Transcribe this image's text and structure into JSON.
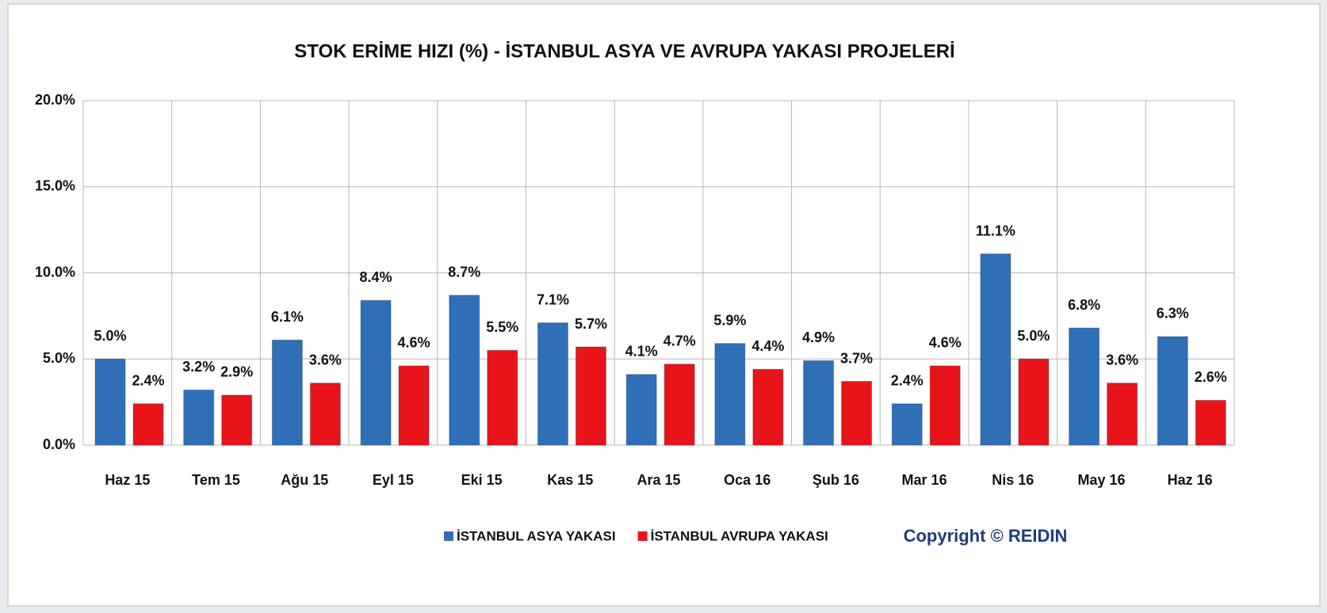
{
  "chart_data": {
    "type": "bar",
    "title": "STOK ERİME HIZI (%) - İSTANBUL ASYA VE AVRUPA YAKASI PROJELERİ",
    "categories": [
      "Haz 15",
      "Tem 15",
      "Ağu 15",
      "Eyl 15",
      "Eki 15",
      "Kas 15",
      "Ara 15",
      "Oca 16",
      "Şub 16",
      "Mar 16",
      "Nis 16",
      "May 16",
      "Haz 16"
    ],
    "series": [
      {
        "name": "İSTANBUL ASYA YAKASI",
        "color": "#2f6fb8",
        "values": [
          5.0,
          3.2,
          6.1,
          8.4,
          8.7,
          7.1,
          4.1,
          5.9,
          4.9,
          2.4,
          11.1,
          6.8,
          6.3
        ],
        "value_labels": [
          "5.0%",
          "3.2%",
          "6.1%",
          "8.4%",
          "8.7%",
          "7.1%",
          "4.1%",
          "5.9%",
          "4.9%",
          "2.4%",
          "11.1%",
          "6.8%",
          "6.3%"
        ]
      },
      {
        "name": "İSTANBUL AVRUPA YAKASI",
        "color": "#e8141a",
        "values": [
          2.4,
          2.9,
          3.6,
          4.6,
          5.5,
          5.7,
          4.7,
          4.4,
          3.7,
          4.6,
          5.0,
          3.6,
          2.6
        ],
        "value_labels": [
          "2.4%",
          "2.9%",
          "3.6%",
          "4.6%",
          "5.5%",
          "5.7%",
          "4.7%",
          "4.4%",
          "3.7%",
          "4.6%",
          "5.0%",
          "3.6%",
          "2.6%"
        ]
      }
    ],
    "ylim": [
      0,
      20
    ],
    "yticks": [
      {
        "value": 0,
        "label": "0.0%"
      },
      {
        "value": 5,
        "label": "5.0%"
      },
      {
        "value": 10,
        "label": "10.0%"
      },
      {
        "value": 15,
        "label": "15.0%"
      },
      {
        "value": 20,
        "label": "20.0%"
      }
    ],
    "grid": true,
    "legend": "bottom",
    "annotation": "Copyright © REIDIN"
  }
}
